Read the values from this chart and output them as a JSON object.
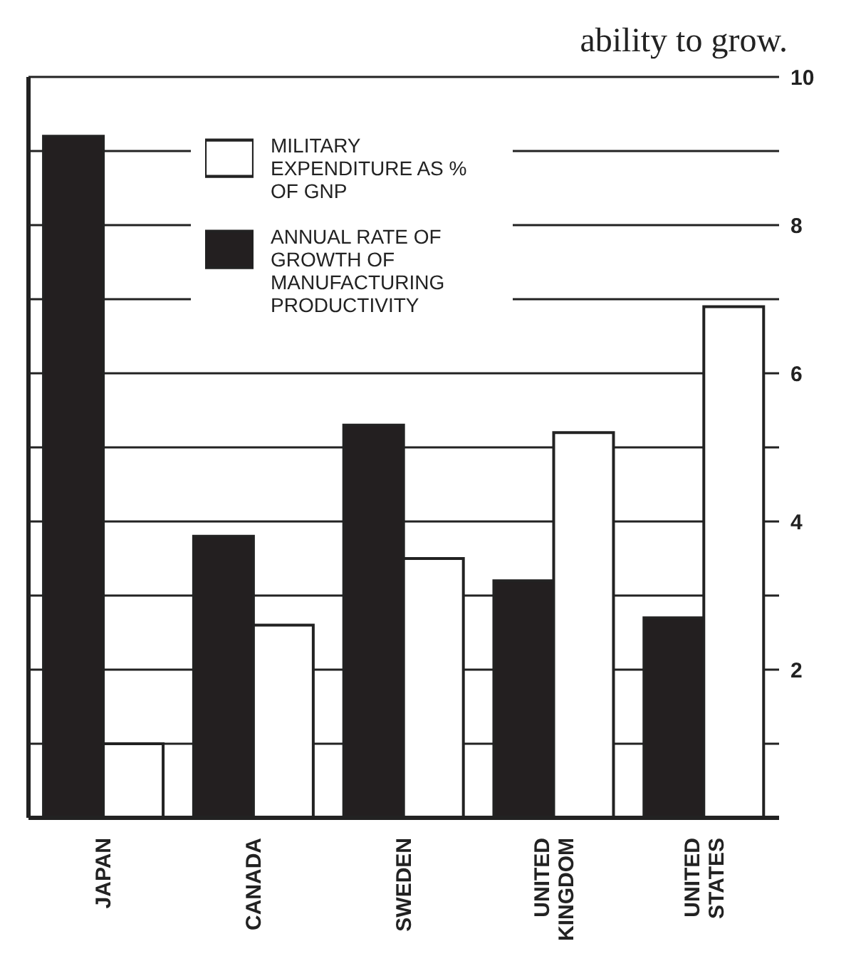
{
  "chart_data": {
    "type": "bar",
    "annotations": [
      "ability to grow."
    ],
    "categories": [
      "JAPAN",
      "CANADA",
      "SWEDEN",
      "UNITED KINGDOM",
      "UNITED STATES"
    ],
    "series": [
      {
        "name": "ANNUAL RATE OF GROWTH OF MANUFACTURING PRODUCTIVITY",
        "color": "#231f20",
        "values": [
          9.2,
          3.8,
          5.3,
          3.2,
          2.7
        ]
      },
      {
        "name": "MILITARY EXPENDITURE AS % OF GNP",
        "color": "#ffffff",
        "values": [
          1.0,
          2.6,
          3.5,
          5.2,
          6.9
        ]
      }
    ],
    "ylim": [
      0,
      10
    ],
    "yticks": [
      {
        "value": 1,
        "label": null
      },
      2,
      {
        "value": 3,
        "label": null
      },
      4,
      {
        "value": 5,
        "label": null
      },
      6,
      {
        "value": 7,
        "label": null
      },
      8,
      {
        "value": 9,
        "label": null
      },
      10
    ],
    "grid": "y",
    "legend": "top"
  }
}
